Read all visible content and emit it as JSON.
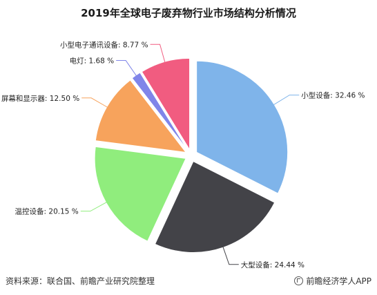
{
  "chart_data": {
    "type": "pie",
    "title": "2019年全球电子废弃物行业市场结构分析情况",
    "slices": [
      {
        "name": "小型设备",
        "value": 32.46,
        "label": "小型设备: 32.46 %",
        "color": "#7fb4ea"
      },
      {
        "name": "大型设备",
        "value": 24.44,
        "label": "大型设备: 24.44 %",
        "color": "#434348"
      },
      {
        "name": "温控设备",
        "value": 20.15,
        "label": "温控设备: 20.15 %",
        "color": "#90ed7d"
      },
      {
        "name": "屏幕和显示器",
        "value": 12.5,
        "label": "屏幕和显示器: 12.50 %",
        "color": "#f7a35c"
      },
      {
        "name": "电灯",
        "value": 1.68,
        "label": "电灯: 1.68 %",
        "color": "#8085e9"
      },
      {
        "name": "小型电子通讯设备",
        "value": 8.77,
        "label": "小型电子通讯设备: 8.77 %",
        "color": "#f15c80"
      }
    ],
    "start_angle_deg": 0,
    "legend": "none"
  },
  "footer": {
    "source": "资料来源：联合国、前瞻产业研究院整理",
    "brand": "前瞻经济学人APP"
  }
}
